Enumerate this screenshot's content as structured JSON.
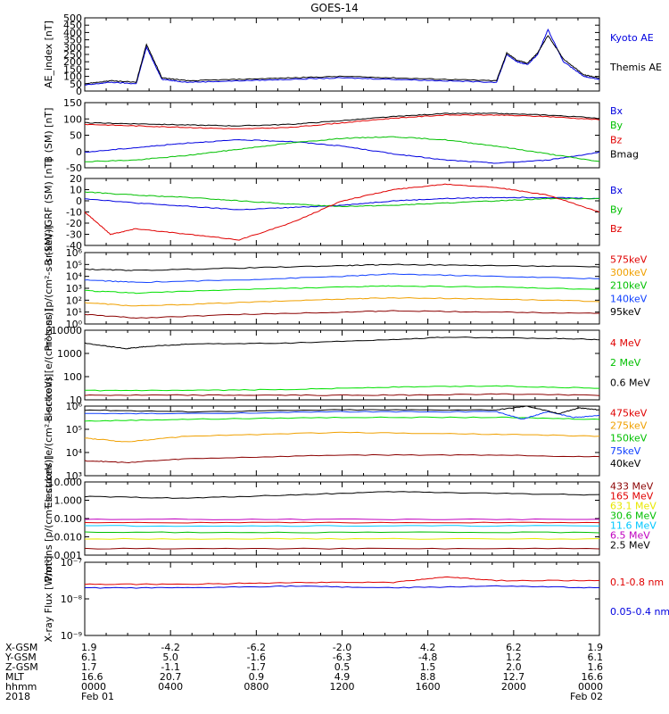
{
  "title": "GOES-14",
  "colors": {
    "black": "#000000",
    "blue": "#0000e0",
    "green": "#00c000",
    "red": "#e00000",
    "orange": "#f0a000",
    "blue2": "#1040ff",
    "brown": "#8b0000",
    "lime": "#00e000",
    "yellow": "#e8e800",
    "cyan": "#00c8ff",
    "magenta": "#c000c0",
    "lightgreen": "#40e040"
  },
  "chart_data": [
    {
      "type": "line",
      "ylabel": "AE_index [nT]",
      "yticks": [
        "0",
        "50",
        "100",
        "150",
        "200",
        "250",
        "300",
        "350",
        "400",
        "450",
        "500"
      ],
      "ylim": [
        0,
        500
      ],
      "legend": [
        {
          "label": "Kyoto AE",
          "color": "#0000e0"
        },
        {
          "label": "Themis AE",
          "color": "#000000"
        }
      ],
      "series": [
        {
          "name": "Kyoto AE",
          "color": "#0000e0",
          "x": [
            0,
            0.05,
            0.1,
            0.12,
            0.15,
            0.2,
            0.3,
            0.4,
            0.5,
            0.6,
            0.7,
            0.8,
            0.82,
            0.84,
            0.86,
            0.88,
            0.9,
            0.93,
            0.97,
            1.0
          ],
          "y": [
            40,
            60,
            50,
            300,
            80,
            60,
            70,
            80,
            90,
            80,
            70,
            60,
            250,
            200,
            180,
            250,
            420,
            200,
            100,
            80
          ]
        },
        {
          "name": "Themis AE",
          "color": "#000000",
          "x": [
            0,
            0.05,
            0.1,
            0.12,
            0.15,
            0.2,
            0.3,
            0.4,
            0.5,
            0.6,
            0.7,
            0.8,
            0.82,
            0.84,
            0.86,
            0.88,
            0.9,
            0.93,
            0.97,
            1.0
          ],
          "y": [
            50,
            70,
            60,
            320,
            90,
            70,
            80,
            90,
            100,
            90,
            80,
            70,
            260,
            210,
            190,
            260,
            380,
            220,
            110,
            90
          ]
        }
      ]
    },
    {
      "type": "line",
      "ylabel": "B (SM) [nT]",
      "yticks": [
        "-50",
        "0",
        "50",
        "100",
        "150"
      ],
      "ylim": [
        -60,
        150
      ],
      "legend": [
        {
          "label": "Bx",
          "color": "#0000e0"
        },
        {
          "label": "By",
          "color": "#00c000"
        },
        {
          "label": "Bz",
          "color": "#e00000"
        },
        {
          "label": "Bmag",
          "color": "#000000"
        }
      ],
      "series": [
        {
          "name": "Bx",
          "color": "#0000e0",
          "x": [
            0,
            0.1,
            0.2,
            0.3,
            0.4,
            0.5,
            0.6,
            0.7,
            0.8,
            0.9,
            1.0
          ],
          "y": [
            -10,
            5,
            20,
            30,
            25,
            10,
            -15,
            -35,
            -45,
            -35,
            -10
          ]
        },
        {
          "name": "By",
          "color": "#00c000",
          "x": [
            0,
            0.1,
            0.2,
            0.3,
            0.4,
            0.5,
            0.6,
            0.7,
            0.8,
            0.9,
            1.0
          ],
          "y": [
            -40,
            -35,
            -20,
            0,
            20,
            35,
            40,
            30,
            10,
            -15,
            -40
          ]
        },
        {
          "name": "Bz",
          "color": "#e00000",
          "x": [
            0,
            0.1,
            0.2,
            0.3,
            0.4,
            0.5,
            0.6,
            0.7,
            0.8,
            0.9,
            1.0
          ],
          "y": [
            80,
            75,
            70,
            65,
            70,
            85,
            100,
            110,
            110,
            105,
            95
          ]
        },
        {
          "name": "Bmag",
          "color": "#000000",
          "x": [
            0,
            0.1,
            0.2,
            0.3,
            0.4,
            0.5,
            0.6,
            0.7,
            0.8,
            0.9,
            1.0
          ],
          "y": [
            85,
            82,
            78,
            75,
            80,
            92,
            105,
            115,
            115,
            110,
            100
          ]
        }
      ]
    },
    {
      "type": "line",
      "ylabel": "B (SM)-IGRF (SM) [nT]",
      "yticks": [
        "-40",
        "-30",
        "-20",
        "-10",
        "0",
        "10",
        "20"
      ],
      "ylim": [
        -40,
        20
      ],
      "legend": [
        {
          "label": "Bx",
          "color": "#0000e0"
        },
        {
          "label": "By",
          "color": "#00c000"
        },
        {
          "label": "Bz",
          "color": "#e00000"
        }
      ],
      "series": [
        {
          "name": "Bx",
          "color": "#0000e0",
          "x": [
            0,
            0.1,
            0.2,
            0.3,
            0.4,
            0.5,
            0.6,
            0.7,
            0.8,
            0.9,
            1.0
          ],
          "y": [
            2,
            -2,
            -5,
            -8,
            -6,
            -4,
            0,
            2,
            3,
            3,
            2
          ]
        },
        {
          "name": "By",
          "color": "#00c000",
          "x": [
            0,
            0.1,
            0.2,
            0.3,
            0.4,
            0.5,
            0.6,
            0.7,
            0.8,
            0.9,
            1.0
          ],
          "y": [
            8,
            5,
            3,
            0,
            -3,
            -5,
            -4,
            -2,
            0,
            2,
            2
          ]
        },
        {
          "name": "Bz",
          "color": "#e00000",
          "x": [
            0,
            0.05,
            0.1,
            0.2,
            0.3,
            0.4,
            0.5,
            0.6,
            0.7,
            0.8,
            0.9,
            1.0
          ],
          "y": [
            -10,
            -30,
            -25,
            -30,
            -35,
            -20,
            0,
            10,
            15,
            12,
            5,
            -10
          ]
        }
      ]
    },
    {
      "type": "line",
      "ylabel": "Protons [p/(cm²-s-sr-keV)]",
      "yticks": [
        "10⁰",
        "10¹",
        "10²",
        "10³",
        "10⁴",
        "10⁵",
        "10⁶"
      ],
      "ylog": true,
      "ylim": [
        0,
        6
      ],
      "legend": [
        {
          "label": "575keV",
          "color": "#e00000"
        },
        {
          "label": "300keV",
          "color": "#f0a000"
        },
        {
          "label": "210keV",
          "color": "#00c000"
        },
        {
          "label": "140keV",
          "color": "#1040ff"
        },
        {
          "label": "95keV",
          "color": "#000000"
        }
      ],
      "series": [
        {
          "name": "575keV",
          "color": "#8b0000",
          "x": [
            0,
            0.1,
            0.3,
            0.5,
            0.6,
            0.8,
            1.0
          ],
          "y": [
            0.8,
            0.5,
            0.8,
            1.0,
            1.1,
            1.0,
            0.9
          ]
        },
        {
          "name": "300keV",
          "color": "#f0a000",
          "x": [
            0,
            0.1,
            0.3,
            0.5,
            0.6,
            0.8,
            1.0
          ],
          "y": [
            1.8,
            1.5,
            1.8,
            2.1,
            2.2,
            2.1,
            1.9
          ]
        },
        {
          "name": "210keV",
          "color": "#00e000",
          "x": [
            0,
            0.1,
            0.3,
            0.5,
            0.6,
            0.8,
            1.0
          ],
          "y": [
            2.8,
            2.6,
            2.9,
            3.1,
            3.2,
            3.1,
            2.9
          ]
        },
        {
          "name": "140keV",
          "color": "#1040ff",
          "x": [
            0,
            0.1,
            0.3,
            0.5,
            0.6,
            0.8,
            1.0
          ],
          "y": [
            3.7,
            3.5,
            3.7,
            4.0,
            4.2,
            4.0,
            3.8
          ]
        },
        {
          "name": "95keV",
          "color": "#000000",
          "x": [
            0,
            0.1,
            0.3,
            0.5,
            0.6,
            0.8,
            1.0
          ],
          "y": [
            4.6,
            4.5,
            4.7,
            4.9,
            5.0,
            4.9,
            4.8
          ]
        }
      ]
    },
    {
      "type": "line",
      "ylabel": "Electrons [e/(cm²-s-sr)]",
      "yticks": [
        "10",
        "100",
        "1000",
        "10000"
      ],
      "ylog": true,
      "ylim": [
        1,
        4
      ],
      "legend": [
        {
          "label": "4 MeV",
          "color": "#e00000"
        },
        {
          "label": "2 MeV",
          "color": "#00c000"
        },
        {
          "label": "0.6 MeV",
          "color": "#000000"
        }
      ],
      "series": [
        {
          "name": "0.6 MeV",
          "color": "#000000",
          "x": [
            0,
            0.08,
            0.12,
            0.2,
            0.4,
            0.6,
            0.7,
            0.9,
            1.0
          ],
          "y": [
            3.45,
            3.2,
            3.3,
            3.4,
            3.45,
            3.6,
            3.7,
            3.65,
            3.6
          ]
        },
        {
          "name": "2 MeV",
          "color": "#00e000",
          "x": [
            0,
            0.2,
            0.4,
            0.6,
            0.8,
            1.0
          ],
          "y": [
            1.4,
            1.4,
            1.45,
            1.55,
            1.6,
            1.5
          ]
        },
        {
          "name": "4 MeV",
          "color": "#8b0000",
          "x": [
            0,
            0.2,
            0.4,
            0.6,
            0.8,
            1.0
          ],
          "y": [
            1.2,
            1.2,
            1.2,
            1.2,
            1.25,
            1.2
          ]
        }
      ]
    },
    {
      "type": "line",
      "ylabel": "Electrons [e/(cm²-s-sr-keV)]",
      "yticks": [
        "10³",
        "10⁴",
        "10⁵",
        "10⁶"
      ],
      "ylog": true,
      "ylim": [
        2.8,
        6.5
      ],
      "legend": [
        {
          "label": "475keV",
          "color": "#e00000"
        },
        {
          "label": "275keV",
          "color": "#f0a000"
        },
        {
          "label": "150keV",
          "color": "#00c000"
        },
        {
          "label": "75keV",
          "color": "#1040ff"
        },
        {
          "label": "40keV",
          "color": "#000000"
        }
      ],
      "series": [
        {
          "name": "475keV",
          "color": "#8b0000",
          "x": [
            0,
            0.08,
            0.2,
            0.5,
            0.8,
            1.0
          ],
          "y": [
            3.6,
            3.5,
            3.7,
            3.9,
            3.9,
            3.8
          ]
        },
        {
          "name": "275keV",
          "color": "#f0a000",
          "x": [
            0,
            0.08,
            0.2,
            0.5,
            0.8,
            1.0
          ],
          "y": [
            4.8,
            4.6,
            4.9,
            5.1,
            5.0,
            4.9
          ]
        },
        {
          "name": "150keV",
          "color": "#00e000",
          "x": [
            0,
            0.2,
            0.5,
            0.8,
            1.0
          ],
          "y": [
            5.7,
            5.8,
            5.9,
            5.9,
            5.8
          ]
        },
        {
          "name": "75keV",
          "color": "#1040ff",
          "x": [
            0,
            0.2,
            0.5,
            0.8,
            0.85,
            0.9,
            0.95,
            1.0
          ],
          "y": [
            6.1,
            6.1,
            6.2,
            6.2,
            5.8,
            6.2,
            5.9,
            6.0
          ]
        },
        {
          "name": "40keV",
          "color": "#000000",
          "x": [
            0,
            0.2,
            0.5,
            0.8,
            0.86,
            0.92,
            0.96,
            1.0
          ],
          "y": [
            6.3,
            6.2,
            6.3,
            6.3,
            6.5,
            6.1,
            6.4,
            6.3
          ]
        }
      ]
    },
    {
      "type": "line",
      "ylabel": "Protons [p/(cm²-s-sr-keV)]",
      "yticks": [
        "0.001",
        "0.010",
        "0.100",
        "1.000",
        "10.000"
      ],
      "ylog": true,
      "ylim": [
        -3,
        1.5
      ],
      "legend": [
        {
          "label": "433 MeV",
          "color": "#8b0000"
        },
        {
          "label": "165 MeV",
          "color": "#e00000"
        },
        {
          "label": "63.1 MeV",
          "color": "#e8e800"
        },
        {
          "label": "30.6 MeV",
          "color": "#00c000"
        },
        {
          "label": "11.6 MeV",
          "color": "#00c8ff"
        },
        {
          "label": "6.5 MeV",
          "color": "#c000c0"
        },
        {
          "label": "2.5 MeV",
          "color": "#000000"
        }
      ],
      "series": [
        {
          "name": "2.5 MeV",
          "color": "#000000",
          "x": [
            0,
            0.2,
            0.4,
            0.6,
            0.8,
            1.0
          ],
          "y": [
            0.6,
            0.5,
            0.7,
            0.9,
            0.8,
            0.7
          ]
        },
        {
          "name": "6.5 MeV",
          "color": "#c000c0",
          "x": [
            0,
            0.5,
            1.0
          ],
          "y": [
            -0.8,
            -0.8,
            -0.8
          ]
        },
        {
          "name": "11.6 MeV",
          "color": "#00c8ff",
          "x": [
            0,
            0.5,
            1.0
          ],
          "y": [
            -1.2,
            -1.2,
            -1.2
          ]
        },
        {
          "name": "30.6 MeV",
          "color": "#00c000",
          "x": [
            0,
            0.5,
            1.0
          ],
          "y": [
            -1.6,
            -1.6,
            -1.6
          ]
        },
        {
          "name": "63.1 MeV",
          "color": "#e8e800",
          "x": [
            0,
            0.5,
            1.0
          ],
          "y": [
            -2.0,
            -2.0,
            -2.0
          ]
        },
        {
          "name": "165 MeV",
          "color": "#e00000",
          "x": [
            0,
            0.5,
            1.0
          ],
          "y": [
            -1.0,
            -1.0,
            -1.0
          ]
        },
        {
          "name": "433 MeV",
          "color": "#8b0000",
          "x": [
            0,
            0.5,
            1.0
          ],
          "y": [
            -2.6,
            -2.6,
            -2.6
          ]
        }
      ]
    },
    {
      "type": "line",
      "ylabel": "X-ray Flux [W/m²]",
      "yticks": [
        "10⁻⁹",
        "10⁻⁸",
        "10⁻⁷"
      ],
      "ylog": true,
      "ylim": [
        -9,
        -7
      ],
      "legend": [
        {
          "label": "0.1-0.8 nm",
          "color": "#e00000"
        },
        {
          "label": "0.05-0.4 nm",
          "color": "#0000e0"
        }
      ],
      "series": [
        {
          "name": "0.1-0.8 nm",
          "color": "#e00000",
          "x": [
            0,
            0.2,
            0.4,
            0.6,
            0.7,
            0.8,
            1.0
          ],
          "y": [
            -7.6,
            -7.6,
            -7.55,
            -7.55,
            -7.4,
            -7.5,
            -7.5
          ]
        },
        {
          "name": "0.05-0.4 nm",
          "color": "#0000e0",
          "x": [
            0,
            0.2,
            0.4,
            0.6,
            0.8,
            1.0
          ],
          "y": [
            -7.7,
            -7.7,
            -7.65,
            -7.7,
            -7.65,
            -7.7
          ]
        }
      ]
    }
  ],
  "x_axis": {
    "row_labels": [
      "X-GSM",
      "Y-GSM",
      "Z-GSM",
      "MLT",
      "hhmm",
      "2018"
    ],
    "columns": [
      [
        "1.9",
        "6.1",
        "1.7",
        "16.6",
        "0000",
        "Feb 01"
      ],
      [
        "-4.2",
        "5.0",
        "-1.1",
        "20.7",
        "0400",
        ""
      ],
      [
        "-6.2",
        "-1.6",
        "-1.7",
        "0.9",
        "0800",
        ""
      ],
      [
        "-2.0",
        "-6.3",
        "0.5",
        "4.9",
        "1200",
        ""
      ],
      [
        "4.2",
        "-4.8",
        "1.5",
        "8.8",
        "1600",
        ""
      ],
      [
        "6.2",
        "1.2",
        "2.0",
        "12.7",
        "2000",
        ""
      ],
      [
        "1.9",
        "6.1",
        "1.6",
        "16.6",
        "0000",
        "Feb 02"
      ]
    ]
  }
}
